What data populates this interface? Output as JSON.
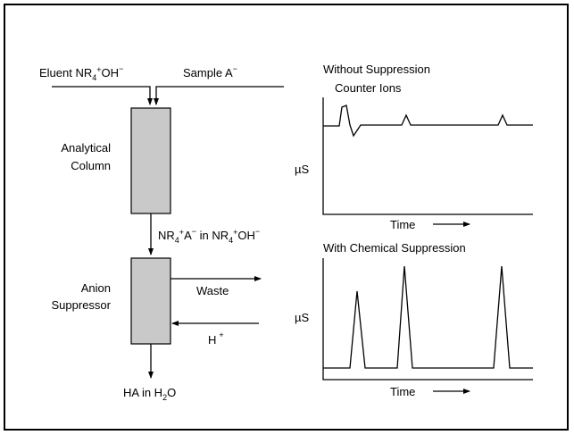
{
  "flow": {
    "eluent_label": "Eluent NR",
    "eluent_sub": "4",
    "eluent_sup": "+",
    "eluent_tail": "OH",
    "eluent_sup2": "−",
    "sample_label": "Sample A",
    "sample_sup": "−",
    "column_label_line1": "Analytical",
    "column_label_line2": "Column",
    "mid_label_a": "NR",
    "mid_sub_a": "4",
    "mid_sup_a": "+",
    "mid_label_b": "A",
    "mid_sup_b": "−",
    "mid_label_c": " in NR",
    "mid_sub_c": "4",
    "mid_sup_c": "+",
    "mid_label_d": "OH",
    "mid_sup_d": "−",
    "suppressor_label_line1": "Anion",
    "suppressor_label_line2": "Suppressor",
    "waste_label": "Waste",
    "h_label": "H",
    "h_sup": "+",
    "output_label": "HA in H",
    "output_sub": "2",
    "output_tail": "O"
  },
  "chart_top": {
    "title_line1": "Without Suppression",
    "title_line2": "Counter Ions",
    "ylabel": "µS",
    "xlabel": "Time"
  },
  "chart_bottom": {
    "title": "With Chemical Suppression",
    "ylabel": "µS",
    "xlabel": "Time"
  }
}
